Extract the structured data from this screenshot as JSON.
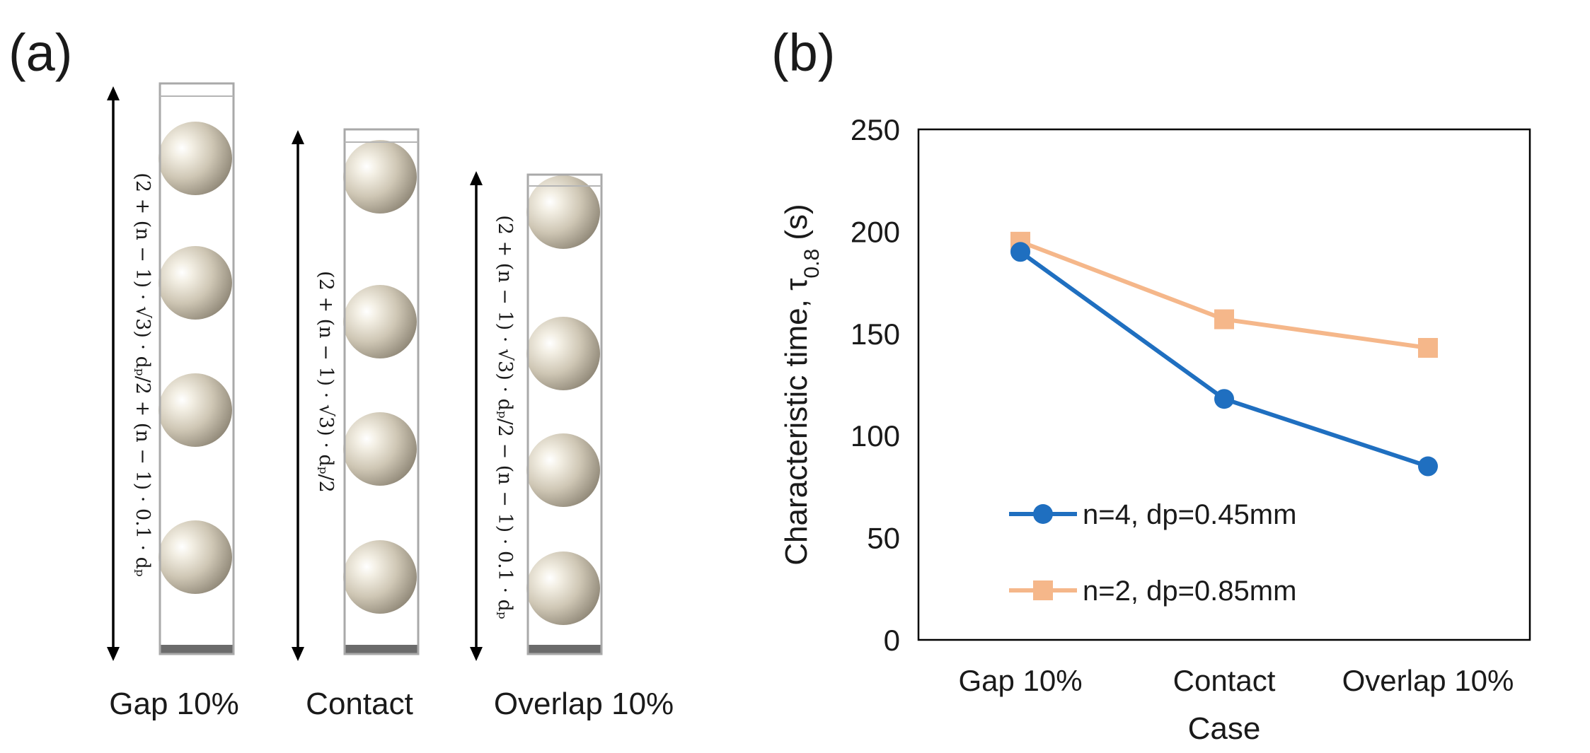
{
  "panel_a": {
    "label": "(a)",
    "columns": [
      {
        "name": "Gap 10%",
        "spheres": 4,
        "formula": "(2 + (n − 1) · √3) · dₚ/2 + (n − 1) · 0.1 · dₚ"
      },
      {
        "name": "Contact",
        "spheres": 4,
        "formula": "(2 + (n − 1) · √3) · dₚ/2"
      },
      {
        "name": "Overlap 10%",
        "spheres": 4,
        "formula": "(2 + (n − 1) · √3) · dₚ/2 − (n − 1) · 0.1 · dₚ"
      }
    ],
    "colors": {
      "sphere": "#cfc7b5",
      "wall": "#a9a9a9",
      "base": "#6b6b6b"
    }
  },
  "panel_b": {
    "label": "(b)"
  },
  "chart_data": {
    "type": "line",
    "categories": [
      "Gap 10%",
      "Contact",
      "Overlap 10%"
    ],
    "series": [
      {
        "name": "n=4, dp=0.45mm",
        "values": [
          190,
          118,
          85
        ],
        "color": "#1f6fc0",
        "marker": "circle"
      },
      {
        "name": "n=2, dp=0.85mm",
        "values": [
          195,
          157,
          143
        ],
        "color": "#f5b78a",
        "marker": "square"
      }
    ],
    "xlabel": "Case",
    "ylabel_main": "Characteristic time, τ",
    "ylabel_sub": "0.8",
    "ylabel_unit": " (s)",
    "ylim": [
      0,
      250
    ],
    "yticks": [
      0,
      50,
      100,
      150,
      200,
      250
    ],
    "yticks_labels": [
      "0",
      "50",
      "100",
      "150",
      "200",
      "250"
    ],
    "legend_position": "lower-left"
  }
}
